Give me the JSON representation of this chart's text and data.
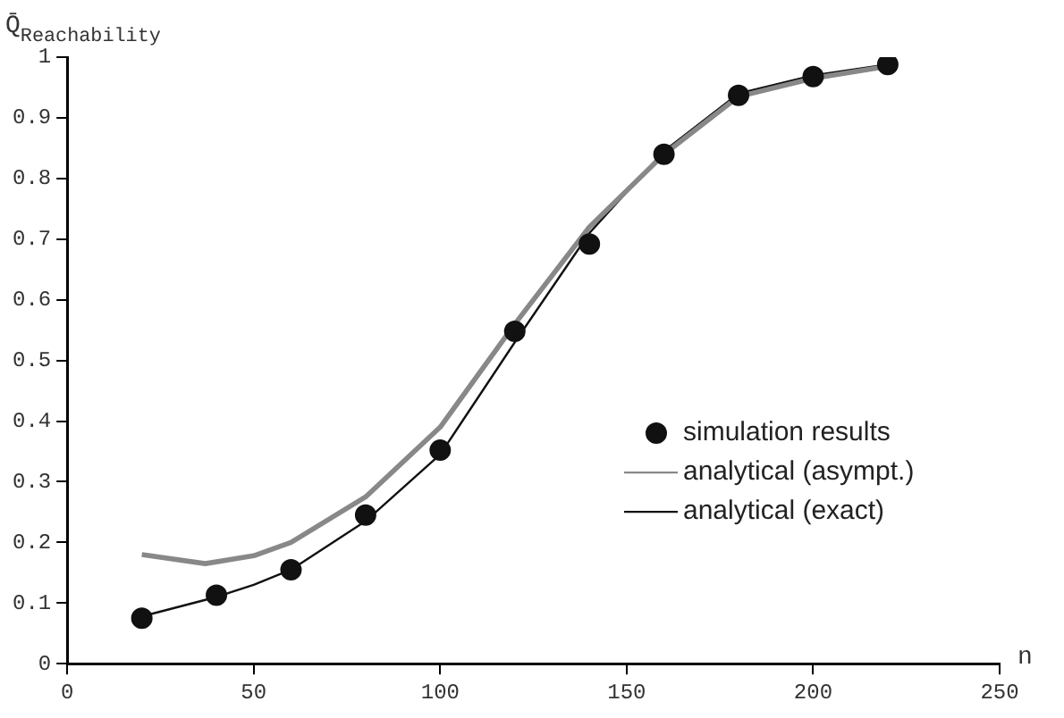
{
  "chart_data": {
    "type": "line",
    "xlabel": "n",
    "ylabel": "Q̄$_{Reachability}$",
    "xlim": [
      0,
      250
    ],
    "xticks": [
      0,
      50,
      100,
      150,
      200,
      250
    ],
    "ylim": [
      0,
      1
    ],
    "yticks": [
      0,
      0.1,
      0.2,
      0.3,
      0.4,
      0.5,
      0.6,
      0.7,
      0.8,
      0.9,
      1
    ],
    "grid": false,
    "legend": "right",
    "series": [
      {
        "name": "simulation results",
        "type": "scatter",
        "marker": "circle",
        "color": "#111111",
        "x": [
          20,
          40,
          60,
          80,
          100,
          120,
          140,
          160,
          180,
          200,
          220
        ],
        "values": [
          0.075,
          0.113,
          0.155,
          0.245,
          0.352,
          0.548,
          0.692,
          0.84,
          0.937,
          0.968,
          0.988
        ]
      },
      {
        "name": "analytical (asympt.)",
        "type": "line",
        "color": "#888888",
        "x": [
          20,
          37,
          50,
          60,
          80,
          100,
          120,
          140,
          160,
          180,
          200,
          220
        ],
        "values": [
          0.18,
          0.165,
          0.178,
          0.2,
          0.275,
          0.39,
          0.56,
          0.72,
          0.84,
          0.935,
          0.965,
          0.985
        ]
      },
      {
        "name": "analytical (exact)",
        "type": "line",
        "color": "#111111",
        "x": [
          20,
          40,
          50,
          60,
          80,
          100,
          120,
          140,
          160,
          180,
          200,
          220
        ],
        "values": [
          0.078,
          0.11,
          0.13,
          0.155,
          0.235,
          0.345,
          0.53,
          0.71,
          0.845,
          0.94,
          0.97,
          0.988
        ]
      }
    ]
  }
}
